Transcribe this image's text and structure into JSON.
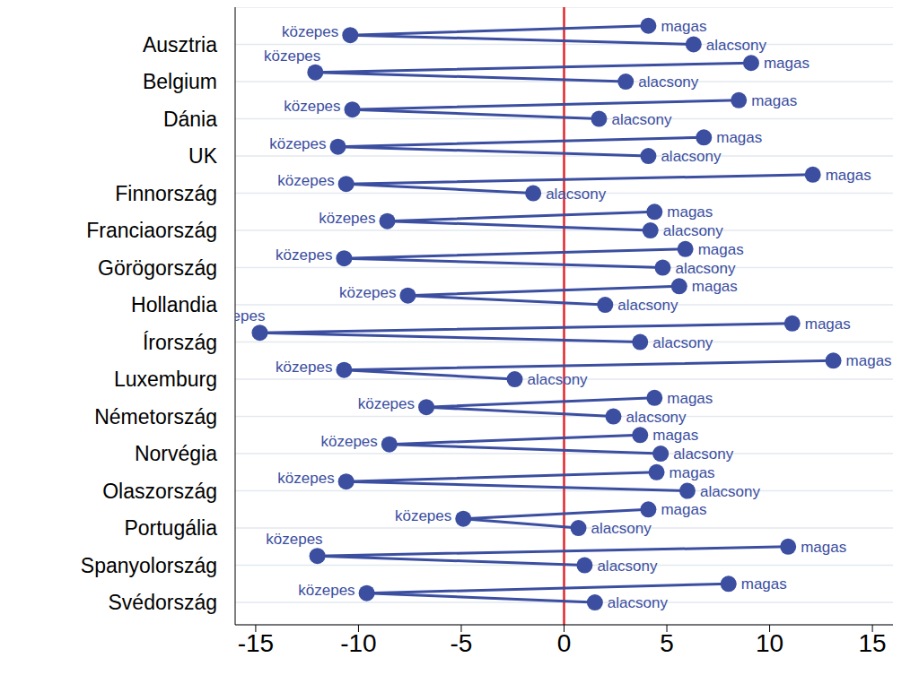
{
  "chart_data": {
    "type": "dumbbell",
    "categories": [
      "Ausztria",
      "Belgium",
      "Dánia",
      "UK",
      "Finnország",
      "Franciaország",
      "Görögország",
      "Hollandia",
      "Írország",
      "Luxemburg",
      "Németország",
      "Norvégia",
      "Olaszország",
      "Portugália",
      "Spanyolország",
      "Svédország"
    ],
    "series": [
      {
        "name": "magas",
        "values": [
          4.1,
          9.1,
          8.5,
          6.8,
          12.1,
          4.4,
          5.9,
          5.6,
          11.1,
          13.1,
          4.4,
          3.7,
          4.5,
          4.1,
          10.9,
          8.0
        ]
      },
      {
        "name": "közepes",
        "values": [
          -10.4,
          -12.1,
          -10.3,
          -11.0,
          -10.6,
          -8.6,
          -10.7,
          -7.6,
          -14.8,
          -10.7,
          -6.7,
          -8.5,
          -10.6,
          -4.9,
          -12.0,
          -9.6
        ]
      },
      {
        "name": "alacsony",
        "values": [
          6.3,
          3.0,
          1.7,
          4.1,
          -1.5,
          4.2,
          4.8,
          2.0,
          3.7,
          -2.4,
          2.4,
          4.7,
          6.0,
          0.7,
          1.0,
          1.5
        ]
      }
    ],
    "color": "#3b4ea0",
    "marker": "circle",
    "xlim": [
      -16,
      16
    ],
    "xticks": [
      -15,
      -10,
      -5,
      0,
      5,
      10,
      15
    ],
    "grid": true,
    "reference_line": {
      "x": 0,
      "color": "#e4262b"
    }
  }
}
